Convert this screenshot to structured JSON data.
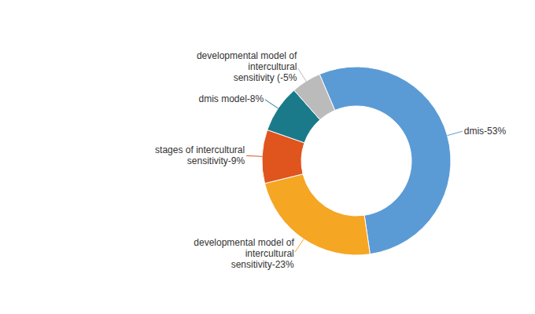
{
  "chart_data": {
    "type": "pie",
    "categories": [
      "dmis-53%",
      "developmental model of intercultural sensitivity-23%",
      "stages of intercultural sensitivity-9%",
      "dmis model-8%",
      "developmental model of intercultural sensitivity (-5%"
    ],
    "values": [
      53,
      23,
      9,
      8,
      5
    ],
    "colors": [
      "#5B9BD5",
      "#F5A623",
      "#E0541E",
      "#1A7A8A",
      "#BBBBBB"
    ]
  }
}
